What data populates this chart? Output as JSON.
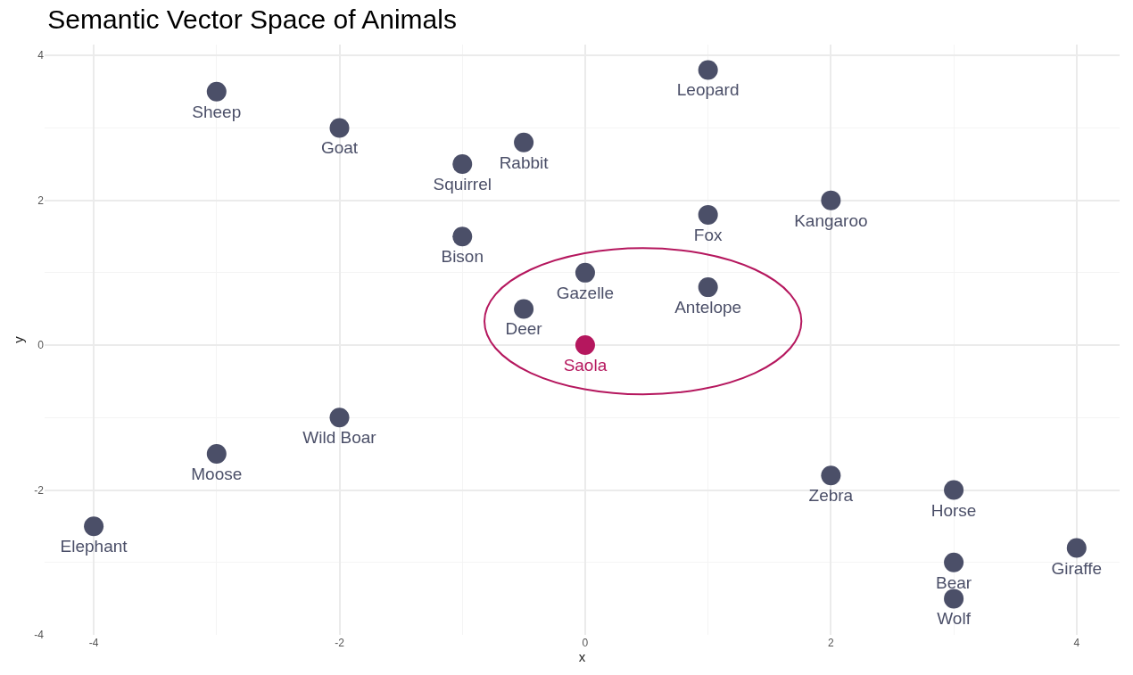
{
  "chart_data": {
    "type": "scatter",
    "title": "Semantic Vector Space of Animals",
    "xlabel": "x",
    "ylabel": "y",
    "xlim": [
      -4.4,
      4.35
    ],
    "ylim": [
      -4.0,
      4.15
    ],
    "xticks": [
      -4,
      -2,
      0,
      2,
      4
    ],
    "yticks": [
      -4,
      -2,
      0,
      2,
      4
    ],
    "grid": true,
    "marker": "circle",
    "series": [
      {
        "x": [
          -3,
          -2,
          -1,
          -0.5,
          1,
          2,
          1,
          -1,
          0,
          1,
          -0.5,
          0,
          -2,
          -3,
          -4,
          2,
          3,
          3,
          3,
          4
        ],
        "values": [
          3.5,
          3,
          2.5,
          2.8,
          3.8,
          2,
          1.8,
          1.5,
          1,
          0.8,
          0.5,
          0,
          -1,
          -1.5,
          -2.5,
          -1.8,
          -2,
          -3,
          -3.5,
          -2.8
        ],
        "value_labels": [
          "Sheep",
          "Goat",
          "Squirrel",
          "Rabbit",
          "Leopard",
          "Kangaroo",
          "Fox",
          "Bison",
          "Gazelle",
          "Antelope",
          "Deer",
          "Saola",
          "Wild Boar",
          "Moose",
          "Elephant",
          "Zebra",
          "Horse",
          "Bear",
          "Wolf",
          "Giraffe"
        ],
        "colors": [
          "#4b4f68",
          "#4b4f68",
          "#4b4f68",
          "#4b4f68",
          "#4b4f68",
          "#4b4f68",
          "#4b4f68",
          "#4b4f68",
          "#4b4f68",
          "#4b4f68",
          "#4b4f68",
          "#b5175e",
          "#4b4f68",
          "#4b4f68",
          "#4b4f68",
          "#4b4f68",
          "#4b4f68",
          "#4b4f68",
          "#4b4f68",
          "#4b4f68"
        ]
      }
    ]
  }
}
